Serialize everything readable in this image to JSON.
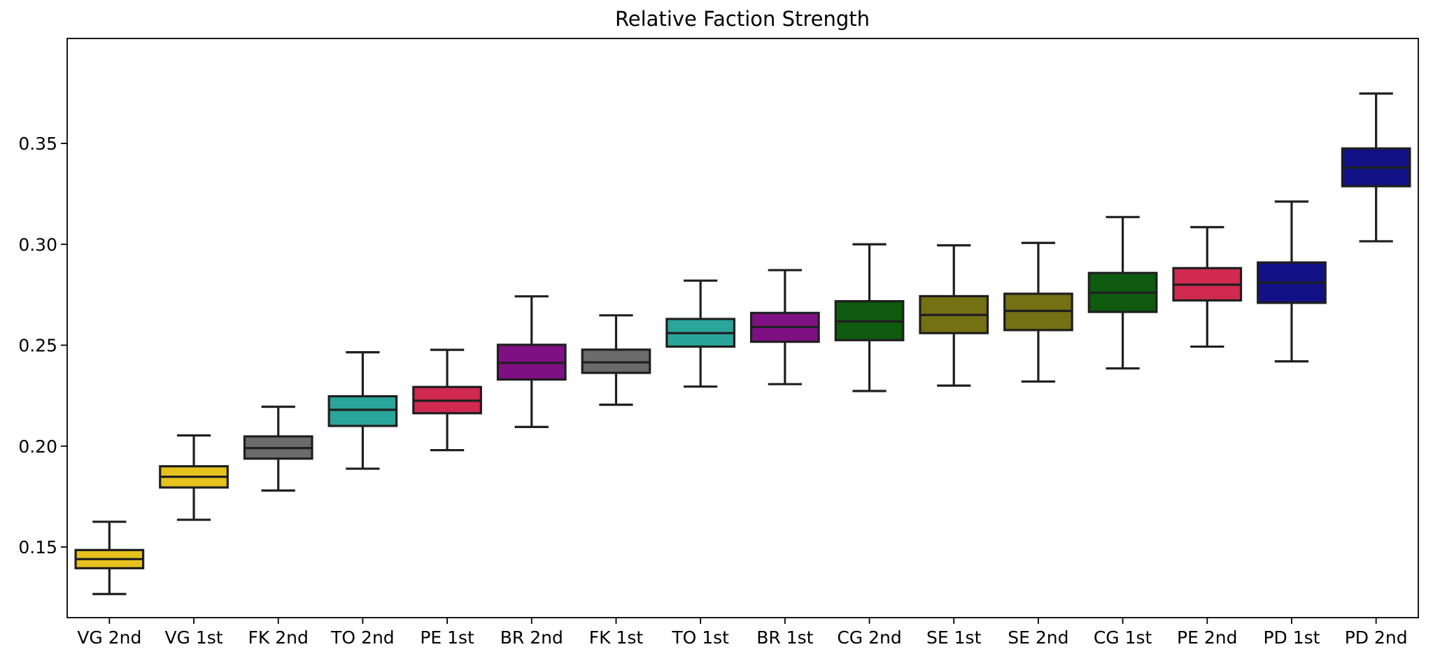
{
  "chart_data": {
    "type": "box",
    "title": "Relative Faction Strength",
    "xlabel": "",
    "ylabel": "",
    "ylim": [
      0.115,
      0.402
    ],
    "yticks": [
      0.15,
      0.2,
      0.25,
      0.3,
      0.35
    ],
    "ytick_labels": [
      "0.15",
      "0.20",
      "0.25",
      "0.30",
      "0.35"
    ],
    "grid": false,
    "categories": [
      "VG 2nd",
      "VG 1st",
      "FK 2nd",
      "TO 2nd",
      "PE 1st",
      "BR 2nd",
      "FK 1st",
      "TO 1st",
      "BR 1st",
      "CG 2nd",
      "SE 1st",
      "SE 2nd",
      "CG 1st",
      "PE 2nd",
      "PD 1st",
      "PD 2nd"
    ],
    "colors": [
      "#e6c21f",
      "#e6c21f",
      "#6b6b6b",
      "#2aa59a",
      "#d02a50",
      "#7f1083",
      "#6b6b6b",
      "#2aa59a",
      "#7f1083",
      "#0e5a0e",
      "#747014",
      "#747014",
      "#0e5a0e",
      "#d02a50",
      "#111185",
      "#111185"
    ],
    "boxes": [
      {
        "whisker_low": 0.1267,
        "q1": 0.1395,
        "median": 0.144,
        "q3": 0.1485,
        "whisker_high": 0.1625
      },
      {
        "whisker_low": 0.1635,
        "q1": 0.1795,
        "median": 0.1848,
        "q3": 0.19,
        "whisker_high": 0.2053
      },
      {
        "whisker_low": 0.178,
        "q1": 0.1938,
        "median": 0.199,
        "q3": 0.2048,
        "whisker_high": 0.2195
      },
      {
        "whisker_low": 0.1888,
        "q1": 0.21,
        "median": 0.218,
        "q3": 0.2247,
        "whisker_high": 0.2465
      },
      {
        "whisker_low": 0.198,
        "q1": 0.2163,
        "median": 0.2225,
        "q3": 0.2293,
        "whisker_high": 0.2477
      },
      {
        "whisker_low": 0.2095,
        "q1": 0.233,
        "median": 0.2412,
        "q3": 0.2502,
        "whisker_high": 0.2742
      },
      {
        "whisker_low": 0.2205,
        "q1": 0.2363,
        "median": 0.2415,
        "q3": 0.2478,
        "whisker_high": 0.2648
      },
      {
        "whisker_low": 0.2295,
        "q1": 0.2493,
        "median": 0.256,
        "q3": 0.263,
        "whisker_high": 0.282
      },
      {
        "whisker_low": 0.2307,
        "q1": 0.2517,
        "median": 0.259,
        "q3": 0.266,
        "whisker_high": 0.2872
      },
      {
        "whisker_low": 0.2273,
        "q1": 0.2525,
        "median": 0.2618,
        "q3": 0.2718,
        "whisker_high": 0.3
      },
      {
        "whisker_low": 0.23,
        "q1": 0.256,
        "median": 0.265,
        "q3": 0.2743,
        "whisker_high": 0.2995
      },
      {
        "whisker_low": 0.232,
        "q1": 0.2575,
        "median": 0.267,
        "q3": 0.2755,
        "whisker_high": 0.3007
      },
      {
        "whisker_low": 0.2385,
        "q1": 0.2665,
        "median": 0.276,
        "q3": 0.2858,
        "whisker_high": 0.3135
      },
      {
        "whisker_low": 0.2493,
        "q1": 0.2722,
        "median": 0.28,
        "q3": 0.2882,
        "whisker_high": 0.3085
      },
      {
        "whisker_low": 0.242,
        "q1": 0.271,
        "median": 0.281,
        "q3": 0.291,
        "whisker_high": 0.3212
      },
      {
        "whisker_low": 0.3015,
        "q1": 0.3288,
        "median": 0.338,
        "q3": 0.3475,
        "whisker_high": 0.3747
      }
    ]
  }
}
